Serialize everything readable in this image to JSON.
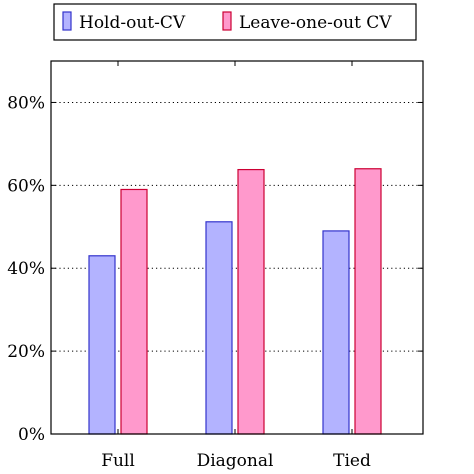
{
  "chart_data": {
    "type": "bar",
    "categories": [
      "Full",
      "Diagonal",
      "Tied"
    ],
    "series": [
      {
        "name": "Hold-out-CV",
        "values": [
          43,
          51.2,
          49
        ],
        "fill": "#b3b3ff",
        "stroke": "#3333cc"
      },
      {
        "name": "Leave-one-out CV",
        "values": [
          59,
          63.8,
          64
        ],
        "fill": "#ff99cc",
        "stroke": "#cc0033"
      }
    ],
    "ylim": [
      0,
      90
    ],
    "yticks": [
      0,
      20,
      40,
      60,
      80
    ],
    "ytick_labels": [
      "0%",
      "20%",
      "40%",
      "60%",
      "80%"
    ],
    "grid": "y-dotted",
    "legend_position": "top-center"
  }
}
